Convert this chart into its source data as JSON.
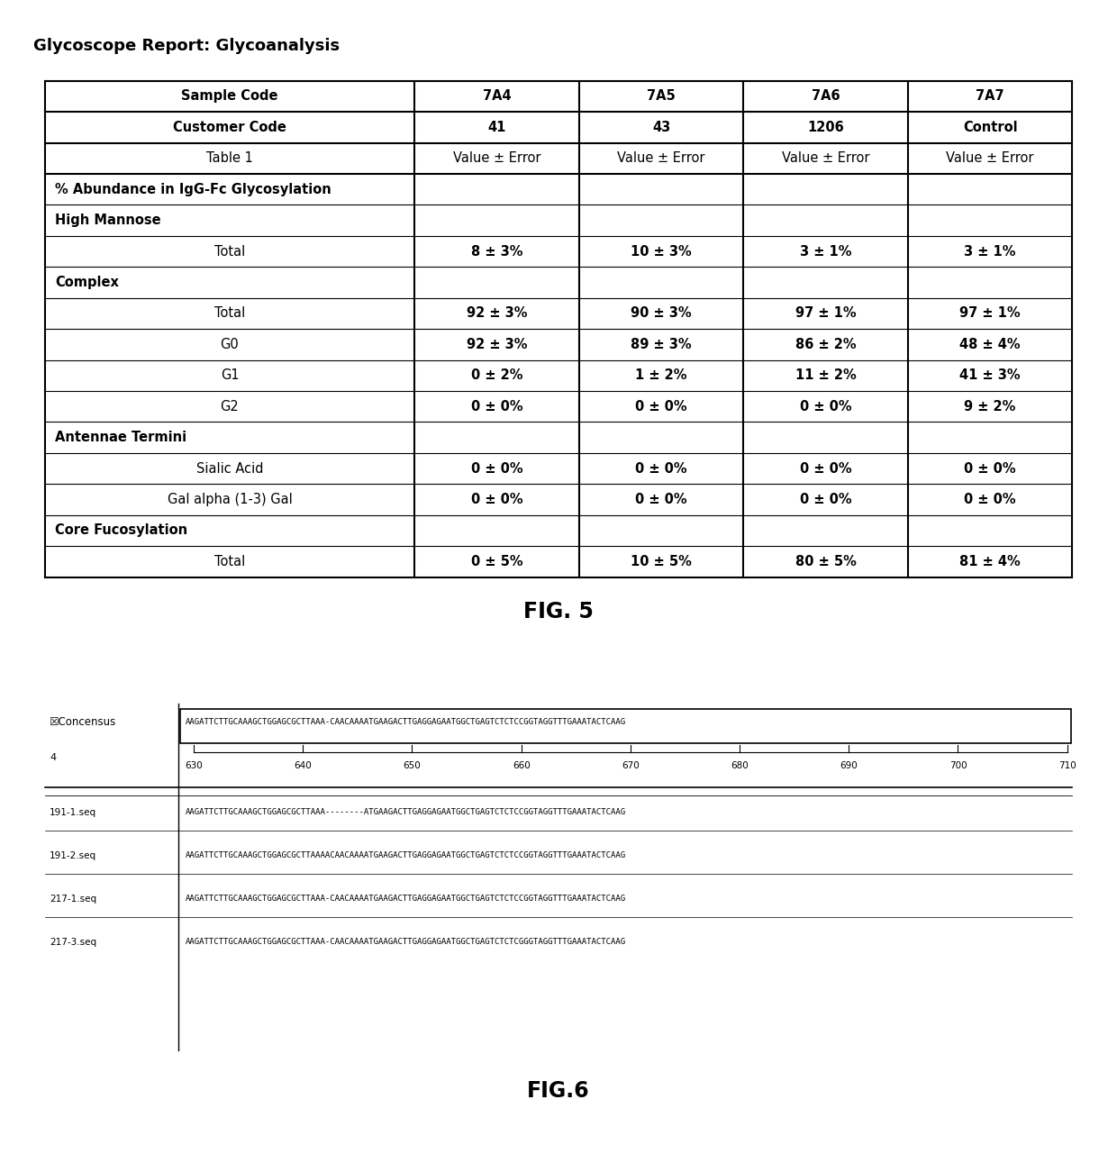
{
  "title1": "Glycoscope Report: Glycoanalysis",
  "fig5_label": "FIG. 5",
  "fig6_label": "FIG.6",
  "table_headers": [
    "Sample Code",
    "7A4",
    "7A5",
    "7A6",
    "7A7"
  ],
  "table_row2": [
    "Customer Code",
    "41",
    "43",
    "1206",
    "Control"
  ],
  "table_row3": [
    "Table 1",
    "Value ± Error",
    "Value ± Error",
    "Value ± Error",
    "Value ± Error"
  ],
  "table_section1": "% Abundance in IgG-Fc Glycosylation",
  "table_section2": "High Mannose",
  "table_hm_total": [
    "Total",
    "8 ± 3%",
    "10 ± 3%",
    "3 ± 1%",
    "3 ± 1%"
  ],
  "table_section3": "Complex",
  "table_complex_total": [
    "Total",
    "92 ± 3%",
    "90 ± 3%",
    "97 ± 1%",
    "97 ± 1%"
  ],
  "table_g0": [
    "G0",
    "92 ± 3%",
    "89 ± 3%",
    "86 ± 2%",
    "48 ± 4%"
  ],
  "table_g1": [
    "G1",
    "0 ± 2%",
    "1 ± 2%",
    "11 ± 2%",
    "41 ± 3%"
  ],
  "table_g2": [
    "G2",
    "0 ± 0%",
    "0 ± 0%",
    "0 ± 0%",
    "9 ± 2%"
  ],
  "table_section4": "Antennae Termini",
  "table_sialic": [
    "Sialic Acid",
    "0 ± 0%",
    "0 ± 0%",
    "0 ± 0%",
    "0 ± 0%"
  ],
  "table_gal": [
    "Gal alpha (1-3) Gal",
    "0 ± 0%",
    "0 ± 0%",
    "0 ± 0%",
    "0 ± 0%"
  ],
  "table_section5": "Core Fucosylation",
  "table_core_total": [
    "Total",
    "0 ± 5%",
    "10 ± 5%",
    "80 ± 5%",
    "81 ± 4%"
  ],
  "consensus_label": "Concensus",
  "consensus_num": "4",
  "consensus_seq": "AAGATTCTTGCAAAGCTGGAGCGCTTAAA-CAACAAAATGAAGACTTGAGGAGAATGGCTGAGTCTCTCCGGTAGGTTTGAAATACTCAAG",
  "ruler_ticks": [
    "630",
    "640",
    "650",
    "660",
    "670",
    "680",
    "690",
    "700",
    "710"
  ],
  "seq_rows": [
    {
      "label": "191-1.seq",
      "seq": "AAGATTCTTGCAAAGCTGGAGCGCTTAAA--------ATGAAGACTTGAGGAGAATGGCTGAGTCTCTCCGGTAGGTTTGAAATACTCAAG"
    },
    {
      "label": "191-2.seq",
      "seq": "AAGATTCTTGCAAAGCTGGAGCGCTTAAAACAACAAAATGAAGACTTGAGGAGAATGGCTGAGTCTCTCCGGTAGGTTTGAAATACTCAAG"
    },
    {
      "label": "217-1.seq",
      "seq": "AAGATTCTTGCAAAGCTGGAGCGCTTAAA-CAACAAAATGAAGACTTGAGGAGAATGGCTGAGTCTCTCCGGTAGGTTTGAAATACTCAAG"
    },
    {
      "label": "217-3.seq",
      "seq": "AAGATTCTTGCAAAGCTGGAGCGCTTAAA-CAACAAAATGAAGACTTGAGGAGAATGGCTGAGTCTCTCGGGTAGGTTTGAAATACTCAAG"
    }
  ]
}
